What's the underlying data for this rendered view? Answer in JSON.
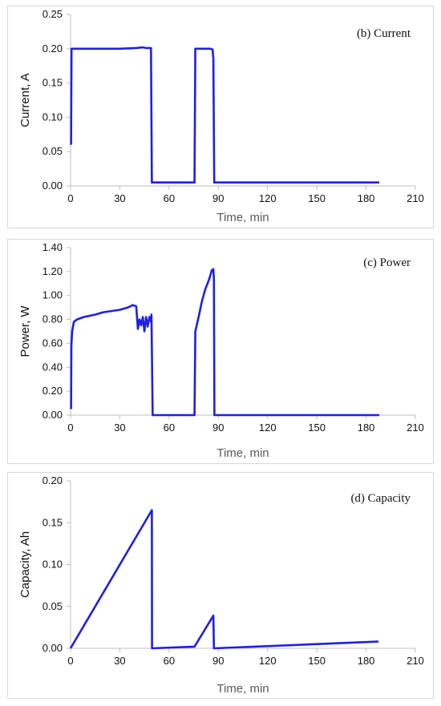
{
  "colors": {
    "series": "#1f1fe6",
    "axis": "#bfbfbf",
    "panel_border": "#d9d9d9"
  },
  "chart_data": [
    {
      "type": "line",
      "annotation": "(b) Current",
      "xlabel": "Time, min",
      "ylabel": "Current, A",
      "xlim": [
        0,
        210
      ],
      "ylim": [
        0,
        0.25
      ],
      "xticks": [
        "0",
        "30",
        "60",
        "90",
        "120",
        "150",
        "180",
        "210"
      ],
      "yticks": [
        "0.00",
        "0.05",
        "0.10",
        "0.15",
        "0.20",
        "0.25"
      ],
      "grid": false,
      "series": [
        {
          "x": [
            0.3,
            0.6,
            1,
            10,
            20,
            30,
            40,
            44,
            46,
            49,
            49.5,
            50,
            55,
            60,
            65,
            70,
            75.5,
            76,
            80,
            85,
            86.5,
            87,
            87.5,
            90,
            120,
            150,
            180,
            188
          ],
          "y": [
            0.06,
            0.2,
            0.2,
            0.2,
            0.2,
            0.2,
            0.201,
            0.202,
            0.201,
            0.201,
            0.005,
            0.005,
            0.005,
            0.005,
            0.005,
            0.005,
            0.005,
            0.2,
            0.2,
            0.2,
            0.199,
            0.185,
            0.005,
            0.005,
            0.005,
            0.005,
            0.005,
            0.005
          ]
        }
      ]
    },
    {
      "type": "line",
      "annotation": "(c) Power",
      "xlabel": "Time, min",
      "ylabel": "Power, W",
      "xlim": [
        0,
        210
      ],
      "ylim": [
        0,
        1.4
      ],
      "xticks": [
        "0",
        "30",
        "60",
        "90",
        "120",
        "150",
        "180",
        "210"
      ],
      "yticks": [
        "0.00",
        "0.20",
        "0.40",
        "0.60",
        "0.80",
        "1.00",
        "1.20",
        "1.40"
      ],
      "grid": false,
      "series": [
        {
          "x": [
            0.3,
            0.5,
            1,
            2,
            4,
            8,
            15,
            20,
            25,
            30,
            35,
            38,
            40,
            41,
            42,
            43,
            44,
            45,
            46,
            47,
            48,
            49,
            49.3,
            50,
            60,
            70,
            75.5,
            76,
            78,
            80,
            82,
            84,
            85,
            86,
            87,
            87.3,
            87.6,
            90,
            120,
            150,
            180,
            188
          ],
          "y": [
            0.05,
            0.58,
            0.7,
            0.78,
            0.8,
            0.82,
            0.84,
            0.86,
            0.87,
            0.88,
            0.9,
            0.92,
            0.91,
            0.72,
            0.8,
            0.75,
            0.82,
            0.7,
            0.82,
            0.74,
            0.82,
            0.78,
            0.84,
            0.0,
            0.0,
            0.0,
            0.0,
            0.7,
            0.82,
            0.95,
            1.05,
            1.12,
            1.16,
            1.21,
            1.22,
            1.14,
            0.0,
            0.0,
            0.0,
            0.0,
            0.0,
            0.0
          ]
        }
      ]
    },
    {
      "type": "line",
      "annotation": "(d) Capacity",
      "xlabel": "Time, min",
      "ylabel": "Capacity, Ah",
      "xlim": [
        0,
        210
      ],
      "ylim": [
        0,
        0.2
      ],
      "xticks": [
        "0",
        "30",
        "60",
        "90",
        "120",
        "150",
        "180",
        "210"
      ],
      "yticks": [
        "0.00",
        "0.05",
        "0.10",
        "0.15",
        "0.20"
      ],
      "grid": false,
      "series": [
        {
          "x": [
            0,
            49.5,
            49.6,
            75.5,
            87,
            87.3,
            187.5
          ],
          "y": [
            0,
            0.165,
            0.0,
            0.002,
            0.039,
            0.0,
            0.008
          ]
        }
      ]
    }
  ]
}
